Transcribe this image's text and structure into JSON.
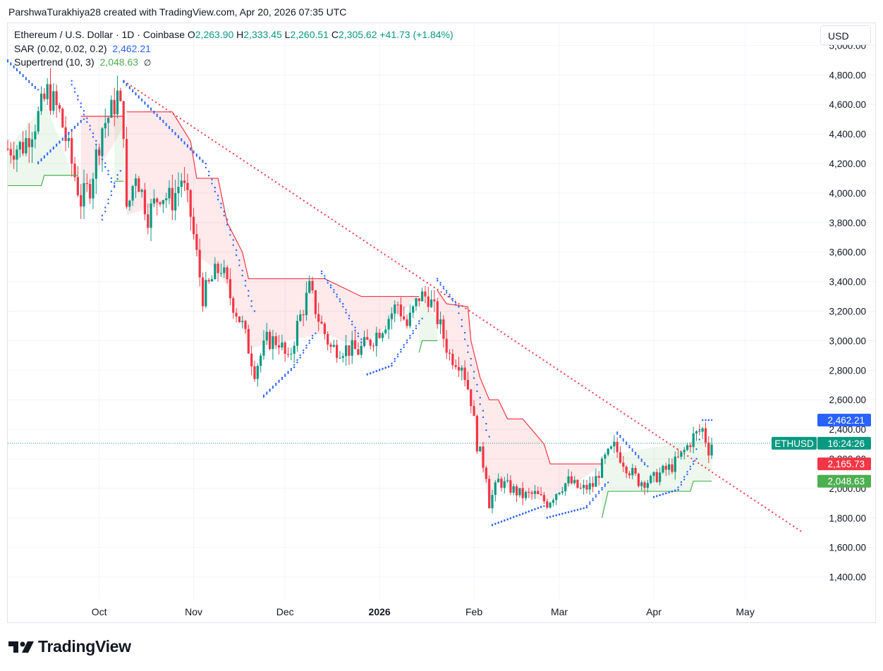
{
  "attribution": "ParshwaTurakhiya28 created with TradingView.com, Apr 20, 2026 07:35 UTC",
  "legend": {
    "symbol": "Ethereum / U.S. Dollar · 1D · Coinbase",
    "o_label": "O",
    "o_value": "2,263.90",
    "h_label": "H",
    "h_value": "2,333.45",
    "l_label": "L",
    "l_value": "2,260.51",
    "c_label": "C",
    "c_value": "2,305.62",
    "change": "+41.73 (+1.84%)",
    "sar_label": "SAR (0.02, 0.02, 0.2)",
    "sar_value": "2,462.21",
    "st_label": "Supertrend (10, 3)",
    "st_value": "2,048.63",
    "st_icon": "∅"
  },
  "currency": "USD",
  "logo_text": "TradingView",
  "colors": {
    "up": "#089981",
    "down": "#f23645",
    "sar": "#2962ff",
    "supertrend_up": "#4caf50",
    "supertrend_down": "#f23645",
    "trendline": "#f23645"
  },
  "chart_data": {
    "type": "candlestick",
    "title": "Ethereum / U.S. Dollar · 1D · Coinbase",
    "y_ticks": [
      "1,400.00",
      "1,600.00",
      "1,800.00",
      "2,000.00",
      "2,200.00",
      "2,400.00",
      "2,600.00",
      "2,800.00",
      "3,000.00",
      "3,200.00",
      "3,400.00",
      "3,600.00",
      "3,800.00",
      "4,000.00",
      "4,200.00",
      "4,400.00",
      "4,600.00",
      "4,800.00",
      "5,000.00"
    ],
    "y_tick_values": [
      1400,
      1600,
      1800,
      2000,
      2200,
      2400,
      2600,
      2800,
      3000,
      3200,
      3400,
      3600,
      3800,
      4000,
      4200,
      4400,
      4600,
      4800,
      5000
    ],
    "x_ticks": [
      {
        "label": "Oct",
        "date": "2025-10-01"
      },
      {
        "label": "Nov",
        "date": "2025-11-01"
      },
      {
        "label": "Dec",
        "date": "2025-12-01"
      },
      {
        "label": "2026",
        "date": "2026-01-01"
      },
      {
        "label": "Feb",
        "date": "2026-02-01"
      },
      {
        "label": "Mar",
        "date": "2026-03-01"
      },
      {
        "label": "Apr",
        "date": "2026-04-01"
      },
      {
        "label": "May",
        "date": "2026-05-01"
      }
    ],
    "ylim": [
      1250,
      5150
    ],
    "xlim": [
      "2025-09-01",
      "2026-05-24"
    ],
    "grid": true,
    "price_labels": {
      "sar": {
        "value": 2462.21,
        "text": "2,462.21"
      },
      "last": {
        "value": 2305.62,
        "symbol": "ETHUSD",
        "countdown": "16:24:26"
      },
      "supertrend_red": {
        "value": 2165.73,
        "text": "2,165.73"
      },
      "supertrend_green": {
        "value": 2048.63,
        "text": "2,048.63"
      }
    },
    "close_path": [
      [
        "2025-09-01",
        4300
      ],
      [
        "2025-09-06",
        4320
      ],
      [
        "2025-09-11",
        4520
      ],
      [
        "2025-09-14",
        4680
      ],
      [
        "2025-09-18",
        4540
      ],
      [
        "2025-09-22",
        4200
      ],
      [
        "2025-09-25",
        3950
      ],
      [
        "2025-09-28",
        4050
      ],
      [
        "2025-10-02",
        4450
      ],
      [
        "2025-10-05",
        4550
      ],
      [
        "2025-10-07",
        4660
      ],
      [
        "2025-10-09",
        4450
      ],
      [
        "2025-10-10",
        3850
      ],
      [
        "2025-10-13",
        4150
      ],
      [
        "2025-10-17",
        3850
      ],
      [
        "2025-10-21",
        4000
      ],
      [
        "2025-10-25",
        3950
      ],
      [
        "2025-10-28",
        4100
      ],
      [
        "2025-10-31",
        3850
      ],
      [
        "2025-11-04",
        3300
      ],
      [
        "2025-11-08",
        3450
      ],
      [
        "2025-11-10",
        3500
      ],
      [
        "2025-11-13",
        3300
      ],
      [
        "2025-11-17",
        3100
      ],
      [
        "2025-11-21",
        2800
      ],
      [
        "2025-11-25",
        3000
      ],
      [
        "2025-11-29",
        3000
      ],
      [
        "2025-12-02",
        2850
      ],
      [
        "2025-12-05",
        3100
      ],
      [
        "2025-12-09",
        3350
      ],
      [
        "2025-12-12",
        3150
      ],
      [
        "2025-12-16",
        2950
      ],
      [
        "2025-12-20",
        2950
      ],
      [
        "2025-12-25",
        2930
      ],
      [
        "2025-12-29",
        3000
      ],
      [
        "2026-01-02",
        3100
      ],
      [
        "2026-01-07",
        3250
      ],
      [
        "2026-01-10",
        3100
      ],
      [
        "2026-01-14",
        3300
      ],
      [
        "2026-01-17",
        3300
      ],
      [
        "2026-01-20",
        3150
      ],
      [
        "2026-01-24",
        2900
      ],
      [
        "2026-01-28",
        2850
      ],
      [
        "2026-01-31",
        2600
      ],
      [
        "2026-02-02",
        2300
      ],
      [
        "2026-02-05",
        2100
      ],
      [
        "2026-02-06",
        1900
      ],
      [
        "2026-02-09",
        2050
      ],
      [
        "2026-02-13",
        2000
      ],
      [
        "2026-02-17",
        1950
      ],
      [
        "2026-02-21",
        1960
      ],
      [
        "2026-02-25",
        1900
      ],
      [
        "2026-03-01",
        2000
      ],
      [
        "2026-03-04",
        2050
      ],
      [
        "2026-03-08",
        1990
      ],
      [
        "2026-03-12",
        2020
      ],
      [
        "2026-03-16",
        2200
      ],
      [
        "2026-03-19",
        2280
      ],
      [
        "2026-03-23",
        2150
      ],
      [
        "2026-03-27",
        2050
      ],
      [
        "2026-03-31",
        2050
      ],
      [
        "2026-04-03",
        2100
      ],
      [
        "2026-04-07",
        2150
      ],
      [
        "2026-04-10",
        2220
      ],
      [
        "2026-04-14",
        2350
      ],
      [
        "2026-04-17",
        2400
      ],
      [
        "2026-04-19",
        2264
      ],
      [
        "2026-04-20",
        2305.62
      ]
    ],
    "sar_segments": [
      {
        "points": [
          [
            "2025-09-01",
            4900
          ],
          [
            "2025-09-11",
            4700
          ]
        ]
      },
      {
        "points": [
          [
            "2025-09-11",
            4200
          ],
          [
            "2025-09-26",
            4500
          ]
        ]
      },
      {
        "points": [
          [
            "2025-09-22",
            4760
          ],
          [
            "2025-10-06",
            4050
          ]
        ]
      },
      {
        "points": [
          [
            "2025-10-02",
            3820
          ],
          [
            "2025-10-08",
            4150
          ]
        ]
      },
      {
        "points": [
          [
            "2025-10-09",
            4760
          ],
          [
            "2025-11-05",
            4200
          ],
          [
            "2025-11-12",
            3820
          ],
          [
            "2025-11-21",
            3200
          ]
        ]
      },
      {
        "points": [
          [
            "2025-11-24",
            2620
          ],
          [
            "2025-12-04",
            2820
          ],
          [
            "2025-12-11",
            3050
          ]
        ]
      },
      {
        "points": [
          [
            "2025-12-13",
            3470
          ],
          [
            "2025-12-20",
            3250
          ],
          [
            "2025-12-27",
            2970
          ]
        ]
      },
      {
        "points": [
          [
            "2025-12-28",
            2770
          ],
          [
            "2026-01-05",
            2830
          ],
          [
            "2026-01-12",
            3050
          ]
        ]
      },
      {
        "points": [
          [
            "2026-01-12",
            3050
          ],
          [
            "2026-01-15",
            3150
          ]
        ]
      },
      {
        "points": [
          [
            "2026-01-20",
            3420
          ],
          [
            "2026-01-27",
            3230
          ],
          [
            "2026-02-06",
            2350
          ]
        ]
      },
      {
        "points": [
          [
            "2026-02-07",
            1750
          ],
          [
            "2026-02-24",
            1880
          ]
        ]
      },
      {
        "points": [
          [
            "2026-02-25",
            1800
          ],
          [
            "2026-03-10",
            1870
          ],
          [
            "2026-03-17",
            2040
          ]
        ]
      },
      {
        "points": [
          [
            "2026-03-20",
            2380
          ],
          [
            "2026-03-30",
            2150
          ]
        ]
      },
      {
        "points": [
          [
            "2026-04-01",
            1940
          ],
          [
            "2026-04-09",
            1990
          ],
          [
            "2026-04-15",
            2200
          ],
          [
            "2026-04-17",
            2462.21
          ]
        ]
      },
      {
        "points": [
          [
            "2026-04-17",
            2462.21
          ],
          [
            "2026-04-20",
            2462.21
          ]
        ]
      }
    ],
    "supertrend_up": [
      {
        "points": [
          [
            "2025-09-01",
            4050
          ],
          [
            "2025-09-12",
            4050
          ],
          [
            "2025-09-13",
            4120
          ],
          [
            "2025-09-24",
            4120
          ]
        ]
      },
      {
        "points": [
          [
            "2025-10-06",
            4080
          ],
          [
            "2025-10-09",
            4080
          ]
        ]
      },
      {
        "points": [
          [
            "2026-01-14",
            2920
          ],
          [
            "2026-01-15",
            3000
          ],
          [
            "2026-01-20",
            3000
          ]
        ]
      },
      {
        "points": [
          [
            "2026-03-15",
            1800
          ],
          [
            "2026-03-17",
            1980
          ],
          [
            "2026-04-13",
            1980
          ],
          [
            "2026-04-14",
            2048.63
          ],
          [
            "2026-04-20",
            2048.63
          ]
        ]
      }
    ],
    "supertrend_down": [
      {
        "points": [
          [
            "2025-09-25",
            4520
          ],
          [
            "2025-10-09",
            4520
          ]
        ]
      },
      {
        "points": [
          [
            "2025-10-10",
            4550
          ],
          [
            "2025-10-25",
            4550
          ],
          [
            "2025-10-28",
            4450
          ],
          [
            "2025-10-31",
            4350
          ],
          [
            "2025-11-02",
            4100
          ],
          [
            "2025-11-09",
            4100
          ],
          [
            "2025-11-12",
            3800
          ],
          [
            "2025-11-17",
            3600
          ],
          [
            "2025-11-19",
            3420
          ],
          [
            "2025-12-14",
            3420
          ],
          [
            "2025-12-26",
            3300
          ],
          [
            "2026-01-14",
            3300
          ]
        ]
      },
      {
        "points": [
          [
            "2026-01-20",
            3340
          ],
          [
            "2026-01-23",
            3250
          ],
          [
            "2026-01-30",
            3230
          ],
          [
            "2026-01-31",
            3000
          ],
          [
            "2026-02-03",
            2750
          ],
          [
            "2026-02-06",
            2600
          ],
          [
            "2026-02-09",
            2600
          ],
          [
            "2026-02-12",
            2470
          ],
          [
            "2026-02-17",
            2470
          ],
          [
            "2026-02-24",
            2300
          ],
          [
            "2026-02-26",
            2165.73
          ],
          [
            "2026-03-15",
            2165.73
          ]
        ]
      }
    ],
    "trendline": {
      "from": [
        "2025-10-09",
        4760
      ],
      "to": [
        "2026-05-20",
        1700
      ]
    }
  }
}
